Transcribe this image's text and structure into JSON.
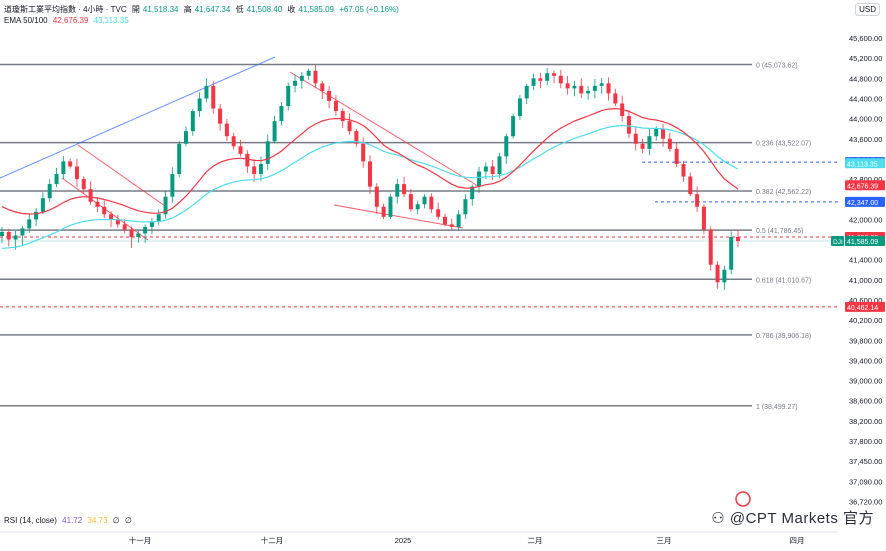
{
  "header": {
    "title": "道瓊斯工業平均指數 · 4小時 · TVC",
    "ohlc": [
      {
        "label": "開",
        "value": "41,518.34"
      },
      {
        "label": "高",
        "value": "41,647.34"
      },
      {
        "label": "低",
        "value": "41,508.40"
      },
      {
        "label": "收",
        "value": "41,585.09"
      }
    ],
    "change": "+67.05 (+0.16%)",
    "ema_label": "EMA 50/100",
    "ema50_value": "42,676.39",
    "ema100_value": "43,113.35",
    "currency": "USD"
  },
  "rsi_header": {
    "label": "RSI (14, close)",
    "value1": "41.72",
    "value2": "34.73",
    "extra1": "∅",
    "extra2": "∅"
  },
  "watermark": "⚇ @CPT Markets 官方",
  "colors": {
    "up": "#089981",
    "down": "#f23645",
    "ema50": "#f23645",
    "ema100": "#4ddcea",
    "fib": "#787b86",
    "trend_blue": "#2962ff",
    "trend_red": "#f23645",
    "level_blue": "#2962ff",
    "level_red": "#f23645"
  },
  "chart_data": {
    "type": "candlestick",
    "y_axis_ticks": [
      "45,600.00",
      "45,200.00",
      "44,800.00",
      "44,400.00",
      "44,000.00",
      "43,600.00",
      "43,200.00",
      "42,800.00",
      "42,400.00",
      "42,000.00",
      "41,600.00",
      "41,400.00",
      "41,000.00",
      "40,600.00",
      "40,200.00",
      "39,800.00",
      "39,400.00",
      "39,000.00",
      "38,600.00",
      "38,200.00",
      "37,800.00",
      "37,450.00",
      "37,090.00",
      "36,720.00"
    ],
    "x_axis_labels": [
      "十一月",
      "十二月",
      "2025",
      "二月",
      "三月",
      "四月"
    ],
    "fib_levels": [
      {
        "ratio_label": "0 (45,073.62)",
        "price": 45073.62
      },
      {
        "ratio_label": "0.236 (43,522.07)",
        "price": 43522.07
      },
      {
        "ratio_label": "0.382 (42,562.22)",
        "price": 42562.22
      },
      {
        "ratio_label": "0.5 (41,786.45)",
        "price": 41786.45
      },
      {
        "ratio_label": "0.618 (41,010.67)",
        "price": 41010.67
      },
      {
        "ratio_label": "0.786 (39,906.18)",
        "price": 39906.18
      },
      {
        "ratio_label": "1 (38,499.27)",
        "price": 38499.27
      }
    ],
    "price_tags": [
      {
        "text": "43,135.91",
        "price": 43135.91,
        "color": "#2962ff",
        "dashed": true
      },
      {
        "text": "43,113.35",
        "price": 43113.35,
        "color": "#4ddcea",
        "dashed": false
      },
      {
        "text": "42,676.39",
        "price": 42676.39,
        "color": "#f23645",
        "dashed": false
      },
      {
        "text": "42,347.00",
        "price": 42347.0,
        "color": "#2962ff",
        "dashed": true
      },
      {
        "text": "41,650.22",
        "price": 41650.22,
        "color": "#f23645",
        "dashed": true
      },
      {
        "text": "41,585.09",
        "price": 41585.09,
        "color": "#089981",
        "dashed": false,
        "symbol": "DJI"
      },
      {
        "text": "40,462.14",
        "price": 40462.14,
        "color": "#f23645",
        "dashed": true
      }
    ],
    "closes": [
      41750,
      41600,
      41680,
      41820,
      42000,
      42150,
      42420,
      42700,
      42900,
      43150,
      43050,
      42800,
      42600,
      42350,
      42250,
      42100,
      42000,
      41900,
      41800,
      41650,
      41720,
      41850,
      41950,
      42100,
      42450,
      42900,
      43500,
      43750,
      44150,
      44400,
      44650,
      44200,
      43900,
      43650,
      43450,
      43300,
      43050,
      42900,
      43100,
      43550,
      43950,
      44250,
      44650,
      44750,
      44850,
      44950,
      44700,
      44550,
      44350,
      44150,
      43950,
      43750,
      43500,
      43150,
      42650,
      42250,
      42050,
      42450,
      42700,
      42500,
      42200,
      42300,
      42450,
      42200,
      42050,
      41900,
      41850,
      42100,
      42400,
      42650,
      42950,
      43050,
      42900,
      43250,
      43650,
      44050,
      44400,
      44650,
      44800,
      44750,
      44900,
      44850,
      44700,
      44600,
      44650,
      44500,
      44550,
      44650,
      44700,
      44500,
      44300,
      44050,
      43700,
      43500,
      43400,
      43650,
      43800,
      43600,
      43400,
      43100,
      42850,
      42500,
      42250,
      41800,
      41300,
      40950,
      41200,
      41650,
      41585
    ]
  }
}
